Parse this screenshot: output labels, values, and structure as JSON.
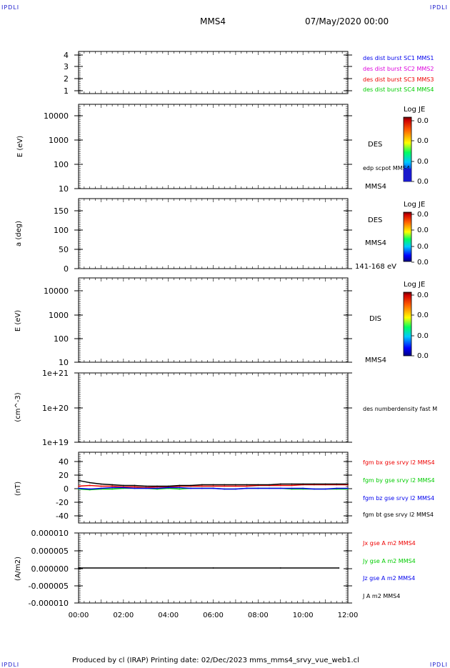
{
  "corner_label": "IPDLI",
  "header": {
    "spacecraft": "MMS4",
    "datetime": "07/May/2020 00:00"
  },
  "footer": {
    "text": "Produced by cl (IRAP)   Printing date: 02/Dec/2023   mms_mms4_srvy_vue_web1.cl"
  },
  "chart_data": [
    {
      "id": "panel1",
      "type": "line",
      "yticks": [
        "4",
        "3",
        "2",
        "1"
      ],
      "ylim": [
        0.5,
        4.5
      ],
      "legend": [
        {
          "text": "des dist burst SC1 MMS1",
          "color": "#0000ee"
        },
        {
          "text": "des dist burst SC2 MMS2",
          "color": "#dd00dd"
        },
        {
          "text": "des dist burst SC3 MMS3",
          "color": "#ee0000"
        },
        {
          "text": "des dist burst SC4 MMS4",
          "color": "#00cc00"
        }
      ]
    },
    {
      "id": "panel2",
      "type": "heatmap",
      "ylabel": "E (eV)",
      "yscale": "log",
      "ylim": [
        10,
        20000
      ],
      "yticks": [
        "10000",
        "1000",
        "100",
        "10"
      ],
      "right_labels": [
        "DES",
        "edp scpot MMS4",
        "MMS4"
      ],
      "colorbar": {
        "title": "Log JE",
        "ticks": [
          "0.0",
          "0.0",
          "0.0",
          "0.0"
        ]
      }
    },
    {
      "id": "panel3",
      "type": "heatmap",
      "ylabel": "a (deg)",
      "ylim": [
        0,
        180
      ],
      "yticks": [
        "150",
        "100",
        "50",
        "0"
      ],
      "right_labels": [
        "DES",
        "MMS4",
        "141-168 eV"
      ],
      "colorbar": {
        "title": "Log JE",
        "ticks": [
          "0.0",
          "0.0",
          "0.0",
          "0.0"
        ]
      }
    },
    {
      "id": "panel4",
      "type": "heatmap",
      "ylabel": "E (eV)",
      "yscale": "log",
      "ylim": [
        10,
        20000
      ],
      "yticks": [
        "10000",
        "1000",
        "100",
        "10"
      ],
      "right_labels": [
        "DIS",
        "MMS4"
      ],
      "colorbar": {
        "title": "Log JE",
        "ticks": [
          "0.0",
          "0.0",
          "0.0",
          "0.0"
        ]
      }
    },
    {
      "id": "panel5",
      "type": "line",
      "ylabel": "(cm^-3)",
      "yscale": "log",
      "ylim": [
        1e+19,
        1e+21
      ],
      "yticks": [
        "1e+21",
        "1e+20",
        "1e+19"
      ],
      "legend": [
        {
          "text": "des numberdensity fast M",
          "color": "#000000"
        }
      ]
    },
    {
      "id": "panel6",
      "type": "line",
      "ylabel": "(nT)",
      "ylim": [
        -50,
        50
      ],
      "yticks": [
        "40",
        "20",
        "0",
        "-20",
        "-40"
      ],
      "legend": [
        {
          "text": "fgm bx gse srvy l2 MMS4",
          "color": "#ee0000"
        },
        {
          "text": "fgm by gse srvy l2 MMS4",
          "color": "#00cc00"
        },
        {
          "text": "fgm bz gse srvy l2 MMS4",
          "color": "#0000ee"
        },
        {
          "text": "fgm bt gse srvy l2 MMS4",
          "color": "#000000"
        }
      ],
      "x_hours": [
        0,
        0.5,
        1,
        1.5,
        2,
        2.5,
        3,
        3.5,
        4,
        4.5,
        5,
        5.5,
        6,
        6.5,
        7,
        7.5,
        8,
        8.5,
        9,
        9.5,
        10,
        10.5,
        11,
        11.5,
        12
      ],
      "series": [
        {
          "name": "fgm bx gse srvy l2 MMS4",
          "color": "#ee0000",
          "values": [
            2,
            3,
            2,
            2,
            1,
            1,
            0,
            1,
            1,
            2,
            2,
            2,
            2,
            2,
            2,
            2,
            3,
            3,
            3,
            3,
            4,
            4,
            4,
            4,
            4
          ]
        },
        {
          "name": "fgm by gse srvy l2 MMS4",
          "color": "#00cc00",
          "values": [
            -2,
            -3,
            -2,
            -2,
            -1,
            -1,
            -1,
            -2,
            -1,
            -2,
            -1,
            -1,
            -1,
            -2,
            -2,
            -1,
            -1,
            -1,
            -1,
            -2,
            -2,
            -2,
            -2,
            -2,
            -2
          ]
        },
        {
          "name": "fgm bz gse srvy l2 MMS4",
          "color": "#0000ee",
          "values": [
            -1,
            -2,
            -1,
            0,
            0,
            -1,
            -1,
            -1,
            0,
            0,
            -1,
            -1,
            -1,
            -2,
            -2,
            -1,
            -1,
            -1,
            -1,
            -1,
            -1,
            -2,
            -2,
            -1,
            -1
          ]
        },
        {
          "name": "fgm bt gse srvy l2 MMS4",
          "color": "#000000",
          "values": [
            10,
            7,
            5,
            4,
            3,
            3,
            2,
            2,
            2,
            3,
            3,
            4,
            4,
            4,
            4,
            4,
            4,
            4,
            5,
            5,
            5,
            5,
            5,
            5,
            5
          ]
        }
      ]
    },
    {
      "id": "panel7",
      "type": "line",
      "ylabel": "(A/m2)",
      "ylim": [
        -1e-05,
        1e-05
      ],
      "yticks": [
        "0.000010",
        "0.000005",
        "0.000000",
        "-0.000005",
        "-0.000010"
      ],
      "legend": [
        {
          "text": "Jx gse A m2 MMS4",
          "color": "#ee0000"
        },
        {
          "text": "Jy gse A m2 MMS4",
          "color": "#00cc00"
        },
        {
          "text": "Jz gse A m2 MMS4",
          "color": "#0000ee"
        },
        {
          "text": "J A m2 MMS4",
          "color": "#000000"
        }
      ],
      "x_hours": [
        0,
        3,
        6,
        9,
        11.6
      ],
      "series": [
        {
          "name": "J A m2 MMS4",
          "color": "#000000",
          "values": [
            0,
            0,
            0,
            0,
            0
          ]
        }
      ]
    }
  ],
  "xaxis": {
    "ticks": [
      "00:00",
      "02:00",
      "04:00",
      "06:00",
      "08:00",
      "10:00",
      "12:00"
    ],
    "range_hours": [
      0,
      12
    ]
  }
}
